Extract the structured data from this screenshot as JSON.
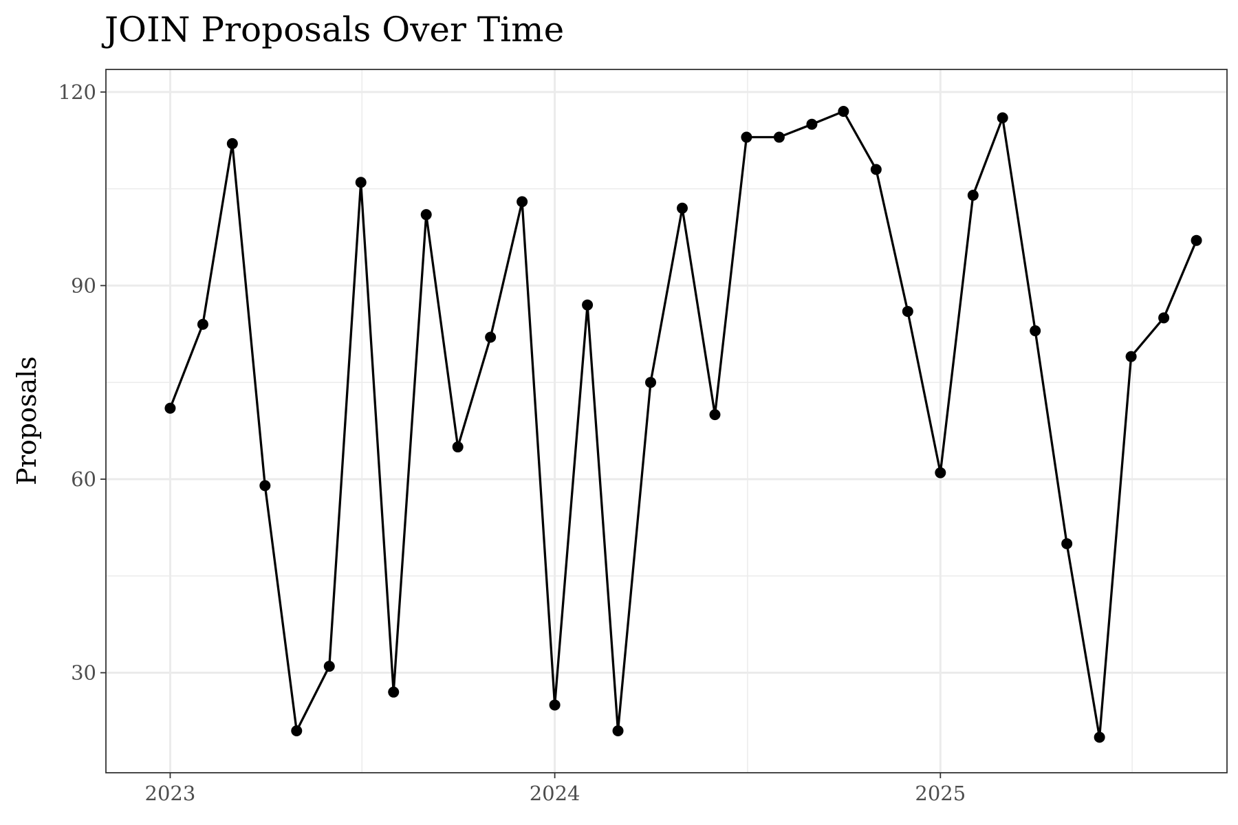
{
  "chart_data": {
    "type": "line",
    "title": "JOIN Proposals Over Time",
    "xlabel": "",
    "ylabel": "Proposals",
    "x_type": "date",
    "xlim": [
      "2022-11-01",
      "2025-09-30"
    ],
    "ylim": [
      14.5,
      123.5
    ],
    "y_ticks": [
      30,
      60,
      90,
      120
    ],
    "y_minor_ticks": [
      45,
      75,
      105
    ],
    "x_ticks": [
      {
        "label": "2023",
        "date": "2023-01-01"
      },
      {
        "label": "2024",
        "date": "2024-01-01"
      },
      {
        "label": "2025",
        "date": "2025-01-01"
      }
    ],
    "x_minor_ticks": [
      "2023-07-02",
      "2024-07-02",
      "2025-07-02"
    ],
    "grid": true,
    "legend": "none",
    "colors": {
      "series": "#000000",
      "grid": "#ebebeb",
      "border": "#333333"
    },
    "series": [
      {
        "points": [
          {
            "x": "2023-01-01",
            "y": 71
          },
          {
            "x": "2023-02-01",
            "y": 84
          },
          {
            "x": "2023-03-01",
            "y": 112
          },
          {
            "x": "2023-04-01",
            "y": 59
          },
          {
            "x": "2023-05-01",
            "y": 21
          },
          {
            "x": "2023-06-01",
            "y": 31
          },
          {
            "x": "2023-07-01",
            "y": 106
          },
          {
            "x": "2023-08-01",
            "y": 27
          },
          {
            "x": "2023-09-01",
            "y": 101
          },
          {
            "x": "2023-10-01",
            "y": 65
          },
          {
            "x": "2023-11-01",
            "y": 82
          },
          {
            "x": "2023-12-01",
            "y": 103
          },
          {
            "x": "2024-01-01",
            "y": 25
          },
          {
            "x": "2024-02-01",
            "y": 87
          },
          {
            "x": "2024-03-01",
            "y": 21
          },
          {
            "x": "2024-04-01",
            "y": 75
          },
          {
            "x": "2024-05-01",
            "y": 102
          },
          {
            "x": "2024-06-01",
            "y": 70
          },
          {
            "x": "2024-07-01",
            "y": 113
          },
          {
            "x": "2024-08-01",
            "y": 113
          },
          {
            "x": "2024-09-01",
            "y": 115
          },
          {
            "x": "2024-10-01",
            "y": 117
          },
          {
            "x": "2024-11-01",
            "y": 108
          },
          {
            "x": "2024-12-01",
            "y": 86
          },
          {
            "x": "2025-01-01",
            "y": 61
          },
          {
            "x": "2025-02-01",
            "y": 104
          },
          {
            "x": "2025-03-01",
            "y": 116
          },
          {
            "x": "2025-04-01",
            "y": 83
          },
          {
            "x": "2025-05-01",
            "y": 50
          },
          {
            "x": "2025-06-01",
            "y": 20
          },
          {
            "x": "2025-07-01",
            "y": 79
          },
          {
            "x": "2025-08-01",
            "y": 85
          },
          {
            "x": "2025-09-01",
            "y": 97
          }
        ]
      }
    ]
  }
}
